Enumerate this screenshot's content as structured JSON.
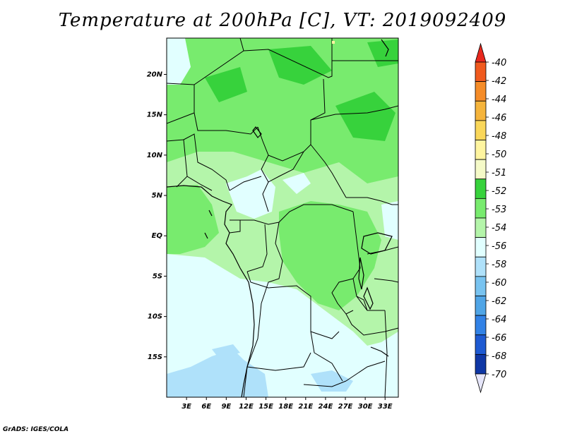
{
  "title": "Temperature at 200hPa [C], VT: 2019092409",
  "credit": "GrADS: IGES/COLA",
  "map": {
    "lon_range": [
      0,
      35
    ],
    "lat_range": [
      -20,
      24.5
    ],
    "lat_ticks": [
      {
        "value": 20,
        "label": "20N"
      },
      {
        "value": 15,
        "label": "15N"
      },
      {
        "value": 10,
        "label": "10N"
      },
      {
        "value": 5,
        "label": "5N"
      },
      {
        "value": 0,
        "label": "EQ"
      },
      {
        "value": -5,
        "label": "5S"
      },
      {
        "value": -10,
        "label": "10S"
      },
      {
        "value": -15,
        "label": "15S"
      }
    ],
    "lon_ticks": [
      {
        "value": 3,
        "label": "3E"
      },
      {
        "value": 6,
        "label": "6E"
      },
      {
        "value": 9,
        "label": "9E"
      },
      {
        "value": 12,
        "label": "12E"
      },
      {
        "value": 15,
        "label": "15E"
      },
      {
        "value": 18,
        "label": "18E"
      },
      {
        "value": 21,
        "label": "21E"
      },
      {
        "value": 24,
        "label": "24E"
      },
      {
        "value": 27,
        "label": "27E"
      },
      {
        "value": 30,
        "label": "30E"
      },
      {
        "value": 33,
        "label": "33E"
      }
    ]
  },
  "legend": {
    "labels": [
      "-40",
      "-42",
      "-44",
      "-46",
      "-48",
      "-50",
      "-51",
      "-52",
      "-53",
      "-54",
      "-56",
      "-58",
      "-60",
      "-62",
      "-64",
      "-66",
      "-68",
      "-70"
    ],
    "colors": [
      "#e8281e",
      "#f05a1e",
      "#f58c28",
      "#f5b43c",
      "#fad75a",
      "#fff5a0",
      "#f5fac8",
      "#37d23c",
      "#78eb6e",
      "#b4f5aa",
      "#e1ffff",
      "#afe1fa",
      "#78c3f0",
      "#50a5e6",
      "#3282e6",
      "#1e5ad2",
      "#0f37a5",
      "#0a1464"
    ]
  }
}
